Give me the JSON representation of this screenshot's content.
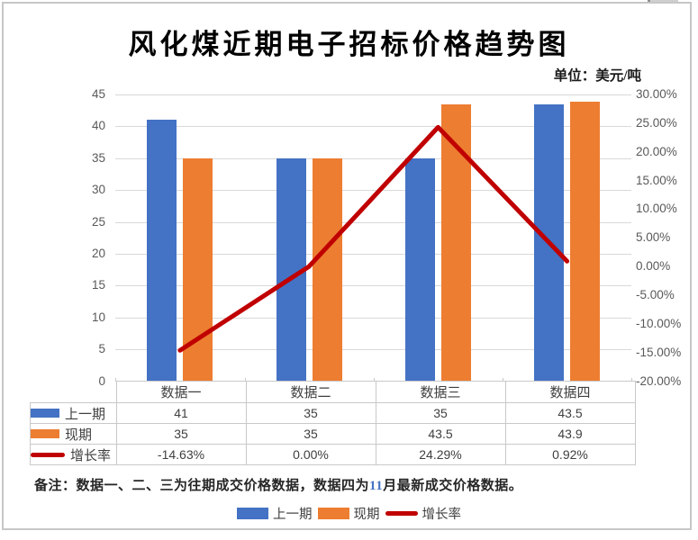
{
  "title": "风化煤近期电子招标价格趋势图",
  "unit_label": "单位：美元/吨",
  "note": {
    "prefix": "备注：数据一、二、三为往期成交价格数据，数据四为",
    "highlight": "11",
    "suffix": "月最新成交价格数据。"
  },
  "colors": {
    "prev_series": "#4472C4",
    "current_series": "#ED7D31",
    "growth_line": "#C00000",
    "gridline": "#D9D9D9",
    "axis_text": "#595959",
    "table_border": "#C9C9C9",
    "table_text": "#3F3F3F",
    "note_highlight": "#4472C4"
  },
  "chart_data": {
    "type": "bar",
    "subtype": "combo bar+line with dual axes and data table",
    "title": "风化煤近期电子招标价格趋势图",
    "categories": [
      "数据一",
      "数据二",
      "数据三",
      "数据四"
    ],
    "series": [
      {
        "name": "上一期",
        "type": "bar",
        "axis": "left",
        "color": "#4472C4",
        "values": [
          41,
          35,
          35,
          43.5
        ],
        "labels": [
          "41",
          "35",
          "35",
          "43.5"
        ]
      },
      {
        "name": "现期",
        "type": "bar",
        "axis": "left",
        "color": "#ED7D31",
        "values": [
          35,
          35,
          43.5,
          43.9
        ],
        "labels": [
          "35",
          "35",
          "43.5",
          "43.9"
        ]
      },
      {
        "name": "增长率",
        "type": "line",
        "axis": "right",
        "color": "#C00000",
        "values": [
          -14.63,
          0.0,
          24.29,
          0.92
        ],
        "labels": [
          "-14.63%",
          "0.00%",
          "24.29%",
          "0.92%"
        ]
      }
    ],
    "left_axis": {
      "min": 0,
      "max": 45,
      "step": 5,
      "ticks": [
        "45",
        "40",
        "35",
        "30",
        "25",
        "20",
        "15",
        "10",
        "5",
        "0"
      ]
    },
    "right_axis": {
      "min": -20,
      "max": 30,
      "step": 5,
      "ticks": [
        "30.00%",
        "25.00%",
        "20.00%",
        "15.00%",
        "10.00%",
        "5.00%",
        "0.00%",
        "-5.00%",
        "-10.00%",
        "-15.00%",
        "-20.00%"
      ]
    },
    "grid": true,
    "legend_position": "bottom",
    "legend": [
      "上一期",
      "现期",
      "增长率"
    ]
  }
}
